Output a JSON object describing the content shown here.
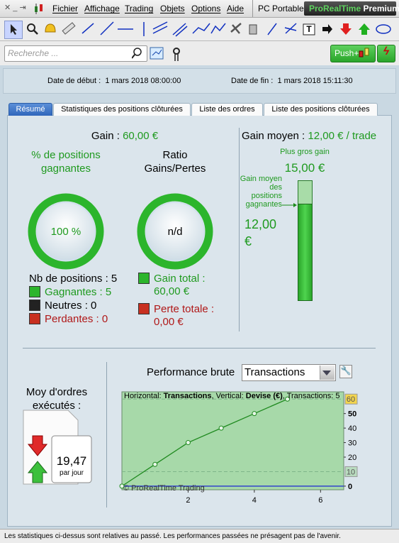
{
  "menu": {
    "items": [
      "Fichier",
      "Affichage",
      "Trading",
      "Objets",
      "Options",
      "Aide"
    ],
    "pc": "PC Portable",
    "brand": "ProRealTime",
    "brand2": "Premium"
  },
  "search": {
    "placeholder": "Recherche ..."
  },
  "push": "Push+",
  "dates": {
    "start_label": "Date de début :",
    "start": "1 mars 2018 08:00:00",
    "end_label": "Date de fin :",
    "end": "1 mars 2018 15:11:30"
  },
  "tabs": [
    "Résumé",
    "Statistiques des positions clôturées",
    "Liste des ordres",
    "Liste des positions clôturées"
  ],
  "summary": {
    "gain_label": "Gain :",
    "gain": "60,00 €",
    "pct_title": "% de positions gagnantes",
    "pct_value": "100 %",
    "ratio_title": "Ratio Gains/Pertes",
    "ratio_value": "n/d",
    "nb_positions": "Nb de positions : 5",
    "gagnantes": "Gagnantes : 5",
    "neutres": "Neutres : 0",
    "perdantes": "Perdantes : 0",
    "gain_total_label": "Gain total :",
    "gain_total": "60,00 €",
    "perte_totale_label": "Perte totale :",
    "perte_totale": "0,00 €",
    "gain_moyen_label": "Gain moyen :",
    "gain_moyen": "12,00 € / trade",
    "plus_gros_label": "Plus gros gain",
    "plus_gros": "15,00 €",
    "gain_moyen_pos_label": "Gain moyen des positions gagnantes",
    "gain_moyen_pos": "12,00 €"
  },
  "performance": {
    "label": "Performance brute",
    "select": "Transactions",
    "moy_label": "Moy d'ordres exécutés :",
    "moy_value": "19,47",
    "moy_unit": "par jour"
  },
  "chart_data": {
    "type": "line",
    "header": [
      "Horizontal: ",
      "Transactions",
      ", Vertical: ",
      "Devise (€)",
      ", Transactions: 5"
    ],
    "watermark": "© ProRealTime Trading",
    "x": [
      0,
      1,
      2,
      3,
      4,
      5
    ],
    "values": [
      0,
      15,
      30,
      40,
      50,
      60
    ],
    "color": "#1f8a1f",
    "xlim": [
      0,
      6.7
    ],
    "ylim": [
      -2.5,
      65
    ],
    "xticks": [
      2,
      4,
      6
    ],
    "yticks": [
      0,
      20,
      30,
      40,
      50
    ],
    "markers": [
      {
        "value": 60,
        "color": "#f3d54e"
      },
      {
        "value": 10,
        "color": "#b9dcbf"
      }
    ]
  },
  "footer": "Les statistiques ci-dessus sont relatives au passé. Les performances passées ne présagent pas de l'avenir."
}
